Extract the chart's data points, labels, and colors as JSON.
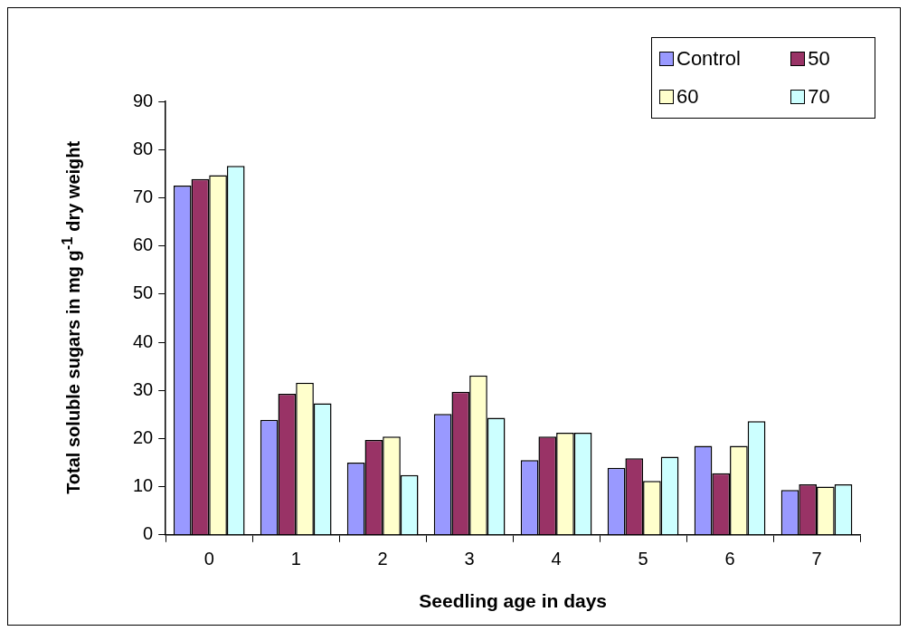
{
  "chart_data": {
    "type": "bar",
    "xlabel": "Seedling age in days",
    "ylabel": "Total soluble sugars in mg g$^{-1}$ dry weight",
    "categories": [
      "0",
      "1",
      "2",
      "3",
      "4",
      "5",
      "6",
      "7"
    ],
    "series": [
      {
        "name": "Control",
        "color": "#9999ff",
        "values": [
          72.5,
          23.9,
          15.0,
          25.1,
          15.5,
          13.9,
          18.5,
          9.3
        ]
      },
      {
        "name": "50",
        "color": "#993366",
        "values": [
          73.9,
          29.3,
          19.7,
          29.7,
          20.4,
          15.9,
          12.8,
          10.5
        ]
      },
      {
        "name": "60",
        "color": "#ffffcc",
        "values": [
          74.7,
          31.6,
          20.4,
          33.1,
          21.2,
          11.2,
          18.5,
          10.0
        ]
      },
      {
        "name": "70",
        "color": "#ccffff",
        "values": [
          76.6,
          27.3,
          12.4,
          24.3,
          21.2,
          16.2,
          23.6,
          10.5
        ]
      }
    ],
    "ylim": [
      0,
      90
    ],
    "yticks": [
      0,
      10,
      20,
      30,
      40,
      50,
      60,
      70,
      80,
      90
    ],
    "grid": false,
    "legend": "top right"
  }
}
